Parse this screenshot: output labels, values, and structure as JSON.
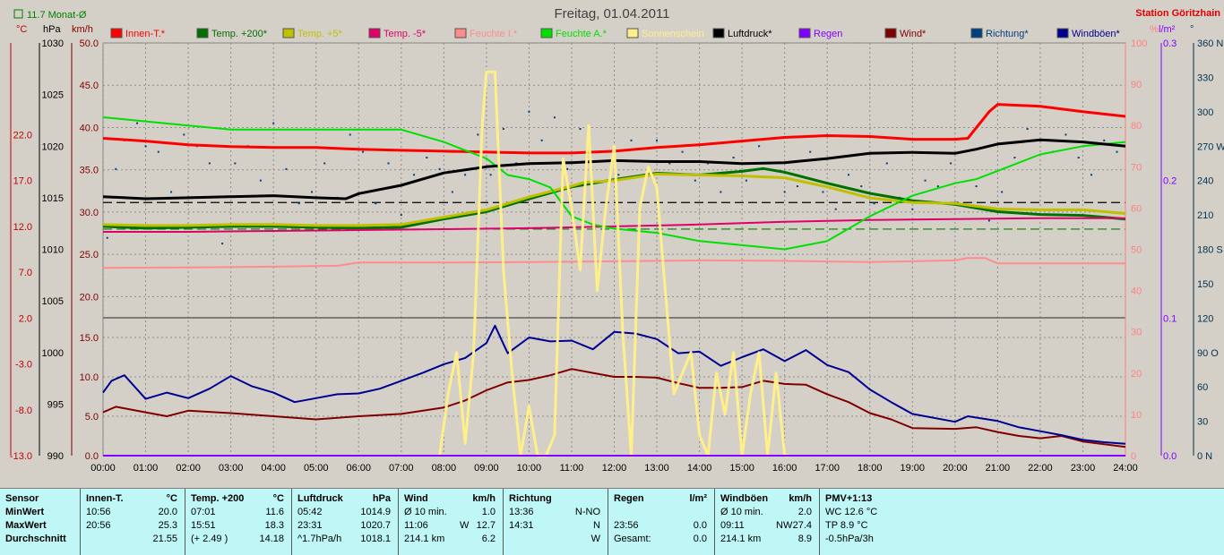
{
  "title": "Freitag, 01.04.2011",
  "station": "Station Göritzhain",
  "month_avg_label": "11.7 Monat-Ø",
  "unit_labels": {
    "temp": "°C",
    "pressure": "hPa",
    "wind": "km/h",
    "humidity": "%",
    "rain": "l/m²",
    "direction": "°"
  },
  "colors": {
    "innen": "#ff0000",
    "temp200": "#007000",
    "temp5": "#c0c000",
    "tempm5": "#e0006a",
    "feuchte_i": "#ff8c8c",
    "feuchte_a": "#00e000",
    "sonne": "#ffef8a",
    "luftdruck": "#000000",
    "regen": "#8000ff",
    "wind": "#800000",
    "richtung": "#004080",
    "windboeen": "#000090",
    "month_avg": "#008000",
    "axis_temp": "#c00000",
    "axis_hum": "#ff8080",
    "axis_rain": "#8000ff",
    "axis_dir": "#003050"
  },
  "legend": [
    {
      "label": "Innen-T.*",
      "color": "#ff0000"
    },
    {
      "label": "Temp. +200*",
      "color": "#007000"
    },
    {
      "label": "Temp. +5*",
      "color": "#c0c000"
    },
    {
      "label": "Temp. -5*",
      "color": "#e0006a"
    },
    {
      "label": "Feuchte I.*",
      "color": "#ff8c8c"
    },
    {
      "label": "Feuchte A.*",
      "color": "#00e000"
    },
    {
      "label": "Sonnenschein",
      "color": "#ffef8a"
    },
    {
      "label": "Luftdruck*",
      "color": "#000000"
    },
    {
      "label": "Regen",
      "color": "#8000ff"
    },
    {
      "label": "Wind*",
      "color": "#800000"
    },
    {
      "label": "Richtung*",
      "color": "#004080"
    },
    {
      "label": "Windböen*",
      "color": "#000090"
    }
  ],
  "chart_data": {
    "type": "line",
    "title": "Freitag, 01.04.2011",
    "x_ticks": [
      "00:00",
      "01:00",
      "02:00",
      "03:00",
      "04:00",
      "05:00",
      "06:00",
      "07:00",
      "08:00",
      "09:00",
      "10:00",
      "11:00",
      "12:00",
      "13:00",
      "14:00",
      "15:00",
      "16:00",
      "17:00",
      "18:00",
      "19:00",
      "20:00",
      "21:00",
      "22:00",
      "23:00",
      "24:00"
    ],
    "xlim": [
      0,
      24
    ],
    "axes": {
      "temp": {
        "ylim": [
          -13,
          32
        ],
        "ticks": [
          "22.0",
          "17.0",
          "12.0",
          "7.0",
          "2.0",
          "-3.0",
          "-8.0",
          "-13.0"
        ]
      },
      "pressure": {
        "ylim": [
          990,
          1030
        ],
        "ticks": [
          "1030",
          "1025",
          "1020",
          "1015",
          "1010",
          "1005",
          "1000",
          "995",
          "990"
        ]
      },
      "wind": {
        "ylim": [
          0,
          50
        ],
        "ticks": [
          "50.0",
          "45.0",
          "40.0",
          "35.0",
          "30.0",
          "25.0",
          "20.0",
          "15.0",
          "10.0",
          "5.0",
          "0.0"
        ]
      },
      "humidity": {
        "ylim": [
          0,
          100
        ],
        "ticks": [
          "100",
          "90",
          "80",
          "70",
          "60",
          "50",
          "40",
          "30",
          "20",
          "10",
          "0"
        ]
      },
      "rain": {
        "ylim": [
          0,
          0.3
        ],
        "ticks": [
          "0.3",
          "0.2",
          "0.1",
          "0.0"
        ]
      },
      "direction": {
        "ylim": [
          0,
          360
        ],
        "ticks": [
          "360 N",
          "330",
          "300",
          "270 W",
          "240",
          "210",
          "180 S",
          "150",
          "120",
          "90 O",
          "60",
          "30",
          "0 N"
        ]
      }
    },
    "reference_lines": [
      {
        "axis": "temp",
        "value": 14.6,
        "color": "#000000"
      },
      {
        "axis": "temp",
        "value": 11.7,
        "color": "#008000"
      }
    ],
    "series": [
      {
        "name": "Innen-T.*",
        "axis": "temp",
        "color": "#ff0000",
        "width": 3,
        "x": [
          0,
          1,
          2,
          3,
          4,
          5,
          6,
          7,
          8,
          9,
          10,
          11,
          12,
          13,
          14,
          15,
          16,
          17,
          18,
          19,
          20,
          20.3,
          20.8,
          21,
          22,
          23,
          24
        ],
        "y": [
          21.6,
          21.3,
          20.9,
          20.7,
          20.6,
          20.6,
          20.4,
          20.3,
          20.2,
          20.1,
          20.0,
          20.0,
          20.2,
          20.6,
          20.9,
          21.3,
          21.7,
          21.9,
          21.8,
          21.5,
          21.5,
          21.6,
          24.5,
          25.3,
          25.1,
          24.5,
          24.0
        ]
      },
      {
        "name": "Temp. +200*",
        "axis": "temp",
        "color": "#007000",
        "width": 3,
        "x": [
          0,
          1,
          2,
          3,
          4,
          5,
          6,
          7,
          8,
          9,
          10,
          11,
          12,
          13,
          14,
          15,
          15.5,
          16,
          17,
          18,
          19,
          20,
          21,
          22,
          23,
          24
        ],
        "y": [
          12.0,
          11.8,
          11.9,
          12.0,
          12.0,
          11.9,
          11.8,
          11.9,
          12.8,
          13.6,
          15.0,
          16.3,
          17.1,
          17.8,
          17.6,
          18.0,
          18.3,
          17.9,
          16.7,
          15.6,
          14.8,
          14.4,
          13.6,
          13.3,
          13.2,
          12.8
        ]
      },
      {
        "name": "Temp. +5*",
        "axis": "temp",
        "color": "#c0c000",
        "width": 3,
        "x": [
          0,
          1,
          2,
          3,
          4,
          5,
          6,
          7,
          8,
          9,
          10,
          11,
          11.3,
          12,
          13,
          14,
          15,
          16,
          17,
          18,
          19,
          20,
          21,
          22,
          23,
          24
        ],
        "y": [
          12.2,
          12.1,
          12.1,
          12.2,
          12.2,
          12.1,
          12.1,
          12.2,
          13.0,
          13.8,
          15.2,
          16.4,
          16.8,
          17.0,
          17.7,
          17.6,
          17.5,
          17.3,
          16.3,
          15.1,
          14.6,
          14.5,
          13.9,
          13.8,
          13.8,
          13.4
        ]
      },
      {
        "name": "Temp. -5*",
        "axis": "temp",
        "color": "#e0006a",
        "width": 2,
        "x": [
          0,
          2,
          4,
          6,
          8,
          10,
          12,
          14,
          16,
          18,
          20,
          22,
          24
        ],
        "y": [
          11.4,
          11.4,
          11.5,
          11.6,
          11.7,
          11.8,
          12.0,
          12.2,
          12.5,
          12.7,
          12.8,
          12.9,
          12.9
        ]
      },
      {
        "name": "Feuchte I.*",
        "axis": "humidity",
        "color": "#ff8c8c",
        "width": 2,
        "x": [
          0,
          2,
          4,
          5.5,
          6,
          8,
          10,
          12,
          14,
          16,
          18,
          20,
          20.3,
          20.7,
          21,
          24
        ],
        "y": [
          45.5,
          45.6,
          45.8,
          46.0,
          46.8,
          46.8,
          46.9,
          47.1,
          47.3,
          47.2,
          46.9,
          47.3,
          47.9,
          47.9,
          46.6,
          46.6
        ]
      },
      {
        "name": "Feuchte A.*",
        "axis": "humidity",
        "color": "#00e000",
        "width": 2,
        "x": [
          0,
          1,
          2,
          3,
          4,
          5,
          6,
          7,
          8,
          9,
          9.5,
          10,
          10.5,
          11,
          11.5,
          12,
          13,
          14,
          15,
          16,
          17,
          18,
          19,
          20,
          20.5,
          21,
          22,
          23,
          24
        ],
        "y": [
          82,
          81,
          80,
          79,
          79,
          79,
          79,
          79,
          76,
          72,
          68,
          67,
          65,
          58,
          56,
          55,
          54,
          52,
          51,
          50,
          52,
          58,
          63,
          66,
          67,
          69,
          73,
          75,
          76
        ]
      },
      {
        "name": "Luftdruck*",
        "axis": "pressure",
        "color": "#000000",
        "width": 3,
        "x": [
          0,
          1,
          2,
          3,
          4,
          5,
          5.7,
          6,
          7,
          8,
          9,
          10,
          11,
          12,
          13,
          14,
          15,
          16,
          17,
          18,
          19,
          20,
          20.5,
          21,
          22,
          23,
          24
        ],
        "y": [
          1015.1,
          1014.9,
          1015.0,
          1015.1,
          1015.2,
          1015.0,
          1014.9,
          1015.4,
          1016.2,
          1017.4,
          1018.0,
          1018.3,
          1018.4,
          1018.6,
          1018.5,
          1018.5,
          1018.3,
          1018.4,
          1018.8,
          1019.3,
          1019.4,
          1019.3,
          1019.7,
          1020.2,
          1020.6,
          1020.4,
          1020.0
        ]
      },
      {
        "name": "Wind*",
        "axis": "wind",
        "color": "#800000",
        "width": 2,
        "x": [
          0,
          0.3,
          1,
          1.5,
          2,
          3,
          4,
          5,
          6,
          7,
          8,
          8.5,
          9,
          9.5,
          10,
          10.5,
          11,
          11.5,
          12,
          12.5,
          13,
          13.5,
          14,
          14.5,
          15,
          15.5,
          16,
          16.5,
          17,
          17.5,
          18,
          18.5,
          19,
          20,
          20.5,
          21,
          21.5,
          22,
          22.5,
          23,
          24
        ],
        "y": [
          5.5,
          6.2,
          5.5,
          5.0,
          5.7,
          5.4,
          5.0,
          4.6,
          5.0,
          5.3,
          6.1,
          7.0,
          8.3,
          9.3,
          9.6,
          10.2,
          11.0,
          10.5,
          10.0,
          10.0,
          9.9,
          9.2,
          8.6,
          8.6,
          8.7,
          9.5,
          9.1,
          9.0,
          7.8,
          6.8,
          5.4,
          4.6,
          3.5,
          3.4,
          3.6,
          3.0,
          2.5,
          2.2,
          2.5,
          1.8,
          1.1
        ]
      },
      {
        "name": "Windböen*",
        "axis": "wind",
        "color": "#000090",
        "width": 2,
        "x": [
          0,
          0.2,
          0.5,
          1,
          1.5,
          2,
          2.5,
          3,
          3.5,
          4,
          4.5,
          5,
          5.5,
          6,
          6.5,
          7,
          7.5,
          8,
          8.5,
          9,
          9.2,
          9.5,
          10,
          10.5,
          11,
          11.5,
          12,
          12.5,
          13,
          13.5,
          14,
          14.5,
          15,
          15.5,
          16,
          16.5,
          17,
          17.5,
          18,
          18.5,
          19,
          20,
          20.3,
          21,
          21.5,
          22,
          22.5,
          23,
          23.5,
          24
        ],
        "y": [
          8.0,
          9.5,
          10.2,
          7.2,
          8.0,
          7.3,
          8.5,
          10.1,
          8.8,
          8.0,
          6.8,
          7.3,
          7.8,
          7.9,
          8.5,
          9.5,
          10.5,
          11.6,
          12.4,
          14.3,
          16.5,
          13.0,
          15.0,
          14.5,
          14.6,
          13.5,
          15.7,
          15.5,
          14.8,
          13.0,
          13.2,
          11.4,
          12.5,
          13.5,
          12.0,
          13.4,
          11.5,
          10.6,
          8.4,
          6.8,
          5.3,
          4.3,
          5.0,
          4.4,
          3.6,
          3.1,
          2.6,
          2.0,
          1.7,
          1.5
        ]
      },
      {
        "name": "Sonnenschein",
        "axis": "humidity",
        "color": "#ffef8a",
        "width": 3,
        "x": [
          7.9,
          8.1,
          8.3,
          8.5,
          8.7,
          8.9,
          9.0,
          9.2,
          9.4,
          9.6,
          9.8,
          10.0,
          10.2,
          10.4,
          10.6,
          10.8,
          11.0,
          11.2,
          11.4,
          11.6,
          11.8,
          12.0,
          12.2,
          12.4,
          12.6,
          12.8,
          13.0,
          13.2,
          13.4,
          13.6,
          13.8,
          14.0,
          14.2,
          14.4,
          14.6,
          14.8,
          15.0,
          15.2,
          15.4,
          15.6,
          15.8,
          16.0,
          16.1
        ],
        "y": [
          0,
          15,
          25,
          3,
          25,
          80,
          93,
          93,
          45,
          20,
          0,
          12,
          0,
          0,
          5,
          72,
          60,
          45,
          80,
          40,
          60,
          75,
          30,
          0,
          60,
          70,
          65,
          40,
          15,
          20,
          25,
          5,
          0,
          20,
          10,
          25,
          0,
          15,
          25,
          0,
          20,
          0,
          0
        ]
      },
      {
        "name": "Regen",
        "axis": "rain",
        "color": "#8000ff",
        "width": 2,
        "x": [
          0,
          24
        ],
        "y": [
          0,
          0
        ]
      }
    ],
    "direction_points": {
      "axis": "direction",
      "x": [
        0.1,
        0.3,
        0.5,
        0.8,
        1.0,
        1.3,
        1.6,
        1.9,
        2.2,
        2.5,
        2.8,
        3.1,
        3.4,
        3.7,
        4.0,
        4.3,
        4.6,
        4.9,
        5.2,
        5.5,
        5.8,
        6.1,
        6.4,
        6.7,
        7.0,
        7.3,
        7.6,
        7.9,
        8.2,
        8.5,
        8.8,
        9.1,
        9.4,
        9.7,
        10.0,
        10.3,
        10.6,
        10.9,
        11.2,
        11.5,
        11.8,
        12.1,
        12.4,
        12.7,
        13.0,
        13.3,
        13.6,
        13.9,
        14.2,
        14.5,
        14.8,
        15.1,
        15.4,
        15.7,
        16.0,
        16.3,
        16.6,
        16.9,
        17.2,
        17.5,
        17.8,
        18.1,
        18.4,
        18.7,
        19.0,
        19.3,
        19.6,
        19.9,
        20.2,
        20.5,
        20.8,
        21.1,
        21.4,
        21.7,
        22.0,
        22.3,
        22.6,
        22.9,
        23.2,
        23.5,
        23.8
      ],
      "y": [
        190,
        250,
        275,
        290,
        270,
        265,
        230,
        280,
        270,
        255,
        185,
        255,
        270,
        240,
        290,
        250,
        220,
        230,
        255,
        225,
        280,
        265,
        220,
        255,
        210,
        245,
        260,
        250,
        230,
        245,
        280,
        245,
        285,
        255,
        300,
        275,
        295,
        250,
        285,
        265,
        265,
        245,
        275,
        235,
        275,
        255,
        265,
        240,
        255,
        230,
        260,
        240,
        270,
        255,
        230,
        235,
        265,
        230,
        215,
        245,
        235,
        220,
        255,
        225,
        215,
        240,
        235,
        255,
        220,
        235,
        205,
        230,
        260,
        285,
        275,
        265,
        280,
        260,
        245,
        275,
        265
      ]
    }
  },
  "table": {
    "row_labels": [
      "Sensor",
      "MinWert",
      "MaxWert",
      "Durchschnitt"
    ],
    "columns": [
      {
        "name": "Innen-T.",
        "unit": "°C",
        "rows": [
          [
            "10:56",
            "",
            "20.0"
          ],
          [
            "20:56",
            "",
            "25.3"
          ],
          [
            "",
            "",
            "21.55"
          ]
        ]
      },
      {
        "name": "Temp. +200",
        "unit": "°C",
        "rows": [
          [
            "07:01",
            "",
            "11.6"
          ],
          [
            "15:51",
            "",
            "18.3"
          ],
          [
            "(+ 2.49 )",
            "",
            "14.18"
          ]
        ]
      },
      {
        "name": "Luftdruck",
        "unit": "hPa",
        "rows": [
          [
            "05:42",
            "",
            "1014.9"
          ],
          [
            "23:31",
            "",
            "1020.7"
          ],
          [
            "^1.7hPa/h",
            "",
            "1018.1"
          ]
        ]
      },
      {
        "name": "Wind",
        "unit": "km/h",
        "rows": [
          [
            "Ø 10 min.",
            "",
            "1.0"
          ],
          [
            "11:06",
            "W",
            "12.7"
          ],
          [
            "214.1 km",
            "",
            "6.2"
          ]
        ]
      },
      {
        "name": "Richtung",
        "unit": "",
        "rows": [
          [
            "13:36",
            "",
            "N-NO"
          ],
          [
            "14:31",
            "",
            "N"
          ],
          [
            "",
            "",
            "W"
          ]
        ]
      },
      {
        "name": "Regen",
        "unit": "l/m²",
        "rows": [
          [
            "",
            "",
            ""
          ],
          [
            "23:56",
            "",
            "0.0"
          ],
          [
            "Gesamt:",
            "",
            "0.0"
          ]
        ]
      },
      {
        "name": "Windböen",
        "unit": "km/h",
        "rows": [
          [
            "Ø 10 min.",
            "",
            "2.0"
          ],
          [
            "09:11",
            "NW",
            "27.4"
          ],
          [
            "214.1 km",
            "",
            "8.9"
          ]
        ]
      },
      {
        "name": "PMV+1:13",
        "unit": "",
        "rows": [
          [
            "WC 12.6 °C",
            "",
            ""
          ],
          [
            "TP 8.9 °C",
            "",
            ""
          ],
          [
            "-0.5hPa/3h",
            "",
            ""
          ]
        ]
      }
    ]
  }
}
